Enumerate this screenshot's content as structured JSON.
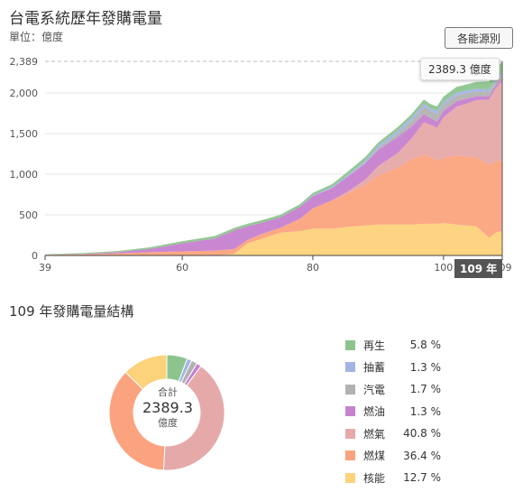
{
  "header": {
    "title": "台電系統歷年發購電量",
    "unit": "單位：億度",
    "source_button": "各能源別"
  },
  "tooltip": {
    "text": "2389.3 億度",
    "year_badge": "109 年"
  },
  "pie_section": {
    "title": "109 年發購電量結構",
    "center_label": "合計",
    "center_value": "2389.3",
    "center_unit": "億度"
  },
  "legend": [
    {
      "name": "再生",
      "value": "5.8 %",
      "color": "#8dc48e"
    },
    {
      "name": "抽蓄",
      "value": "1.3 %",
      "color": "#a3b4e3"
    },
    {
      "name": "汽電",
      "value": "1.7 %",
      "color": "#b2b2b2"
    },
    {
      "name": "燃油",
      "value": "1.3 %",
      "color": "#c681cf"
    },
    {
      "name": "燃氣",
      "value": "40.8 %",
      "color": "#e6a9a9"
    },
    {
      "name": "燃煤",
      "value": "36.4 %",
      "color": "#fba37e"
    },
    {
      "name": "核能",
      "value": "12.7 %",
      "color": "#fcd27b"
    }
  ],
  "chart_data": [
    {
      "type": "area",
      "stacked": true,
      "x_ticks": [
        "39",
        "60",
        "80",
        "100",
        "109"
      ],
      "y_ticks": [
        "0",
        "500",
        "1,000",
        "1,500",
        "2,000",
        "2,389"
      ],
      "xlim": [
        39,
        109
      ],
      "ylim": [
        0,
        2389
      ],
      "grid": true,
      "x": [
        39,
        45,
        50,
        55,
        60,
        65,
        68,
        70,
        72,
        75,
        78,
        80,
        83,
        85,
        88,
        90,
        93,
        95,
        97,
        98,
        99,
        100,
        102,
        105,
        107,
        108,
        109
      ],
      "series": [
        {
          "name": "核能",
          "color": "#fcd27b",
          "values": [
            0,
            0,
            0,
            0,
            0,
            0,
            20,
            150,
            200,
            280,
            300,
            330,
            330,
            350,
            370,
            380,
            380,
            380,
            390,
            390,
            390,
            400,
            380,
            360,
            220,
            280,
            303
          ]
        },
        {
          "name": "燃煤",
          "color": "#fba37e",
          "values": [
            8,
            15,
            25,
            40,
            50,
            60,
            60,
            40,
            60,
            60,
            150,
            250,
            350,
            400,
            500,
            600,
            700,
            800,
            850,
            820,
            780,
            800,
            850,
            850,
            900,
            880,
            870
          ]
        },
        {
          "name": "燃氣",
          "color": "#e6a9a9",
          "values": [
            0,
            0,
            0,
            0,
            0,
            0,
            0,
            0,
            0,
            0,
            0,
            0,
            0,
            20,
            60,
            120,
            180,
            250,
            400,
            400,
            400,
            500,
            600,
            700,
            800,
            900,
            975
          ]
        },
        {
          "name": "燃油",
          "color": "#c681cf",
          "values": [
            0,
            5,
            15,
            40,
            100,
            150,
            230,
            170,
            140,
            130,
            150,
            150,
            150,
            180,
            200,
            200,
            200,
            150,
            100,
            80,
            80,
            80,
            70,
            50,
            40,
            35,
            31
          ]
        },
        {
          "name": "汽電",
          "color": "#b2b2b2",
          "values": [
            0,
            0,
            0,
            0,
            0,
            0,
            0,
            0,
            0,
            0,
            0,
            0,
            0,
            0,
            10,
            20,
            40,
            70,
            90,
            90,
            90,
            80,
            70,
            60,
            50,
            45,
            41
          ]
        },
        {
          "name": "抽蓄",
          "color": "#a3b4e3",
          "values": [
            0,
            0,
            0,
            0,
            0,
            0,
            0,
            0,
            0,
            0,
            0,
            10,
            20,
            20,
            30,
            30,
            40,
            40,
            40,
            35,
            35,
            35,
            35,
            35,
            33,
            32,
            31
          ]
        },
        {
          "name": "再生",
          "color": "#8dc48e",
          "values": [
            5,
            10,
            15,
            20,
            25,
            30,
            30,
            30,
            30,
            30,
            30,
            30,
            30,
            40,
            40,
            40,
            40,
            40,
            50,
            50,
            60,
            60,
            70,
            80,
            100,
            120,
            138
          ]
        }
      ]
    },
    {
      "type": "pie",
      "donut": true,
      "total": 2389.3,
      "slices": [
        {
          "name": "再生",
          "value": 5.8,
          "color": "#8dc48e"
        },
        {
          "name": "抽蓄",
          "value": 1.3,
          "color": "#a3b4e3"
        },
        {
          "name": "汽電",
          "value": 1.7,
          "color": "#b2b2b2"
        },
        {
          "name": "燃油",
          "value": 1.3,
          "color": "#c681cf"
        },
        {
          "name": "燃氣",
          "value": 40.8,
          "color": "#e6a9a9"
        },
        {
          "name": "燃煤",
          "value": 36.4,
          "color": "#fba37e"
        },
        {
          "name": "核能",
          "value": 12.7,
          "color": "#fcd27b"
        }
      ]
    }
  ]
}
